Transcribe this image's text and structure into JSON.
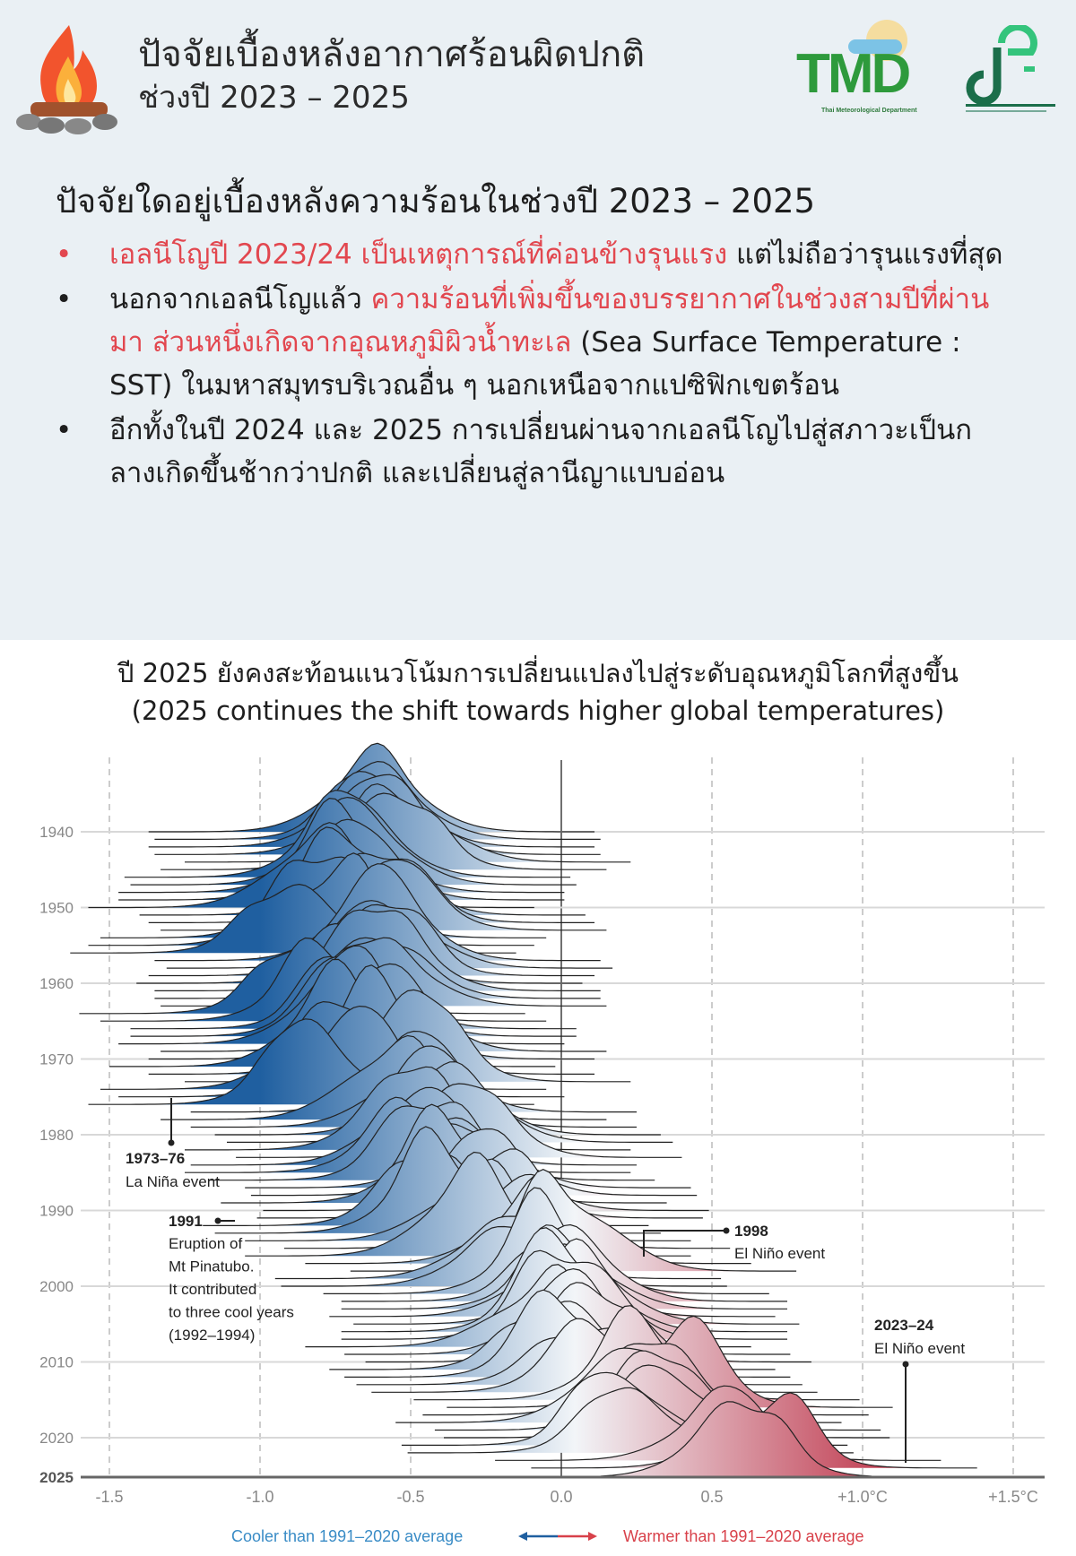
{
  "header": {
    "title": "ปัจจัยเบื้องหลังอากาศร้อนผิดปกติ",
    "subtitle": "ช่วงปี 2023 – 2025",
    "logo_tmd": "TMD",
    "logo_tmd_caption": "Thai Meteorological Department",
    "icons": [
      "campfire-icon",
      "tmd-logo",
      "ministry-logo"
    ]
  },
  "section": {
    "question": "ปัจจัยใดอยู่เบื้องหลังความร้อนในช่วงปี 2023 – 2025",
    "bullets": [
      {
        "red": "เอลนีโญปี 2023/24 เป็นเหตุการณ์ที่ค่อนข้างรุนแรง",
        "rest": " แต่ไม่ถือว่ารุนแรงที่สุด"
      },
      {
        "pre": "นอกจากเอลนีโญแล้ว ",
        "red": "ความร้อนที่เพิ่มขึ้นของบรรยากาศในช่วงสามปีที่ผ่านมา ส่วนหนึ่งเกิดจากอุณหภูมิผิวน้ำทะเล",
        "rest": " (Sea Surface Temperature : SST) ในมหาสมุทรบริเวณอื่น ๆ นอกเหนือจากแปซิฟิกเขตร้อน"
      },
      {
        "rest": "อีกทั้งในปี 2024 และ 2025 การเปลี่ยนผ่านจากเอลนีโญไปสู่สภาวะเป็นกลางเกิดขึ้นช้ากว่าปกติ และเปลี่ยนสู่ลานีญาแบบอ่อน"
      }
    ],
    "accent_color": "#e2474f"
  },
  "chart_data": {
    "type": "ridgeline",
    "title": "ปี 2025 ยังคงสะท้อนแนวโน้มการเปลี่ยนแปลงไปสู่ระดับอุณหภูมิโลกที่สูงขึ้น",
    "subtitle": "(2025 continues the shift towards higher global temperatures)",
    "x_ticks": [
      "-1.5",
      "-1.0",
      "-0.5",
      "0.0",
      "0.5",
      "+1.0°C",
      "+1.5°C"
    ],
    "x_tick_values": [
      -1.5,
      -1.0,
      -0.5,
      0.0,
      0.5,
      1.0,
      1.5
    ],
    "xlim": [
      -1.5,
      1.5
    ],
    "y_ticks": [
      "1940",
      "1950",
      "1960",
      "1970",
      "1980",
      "1990",
      "2000",
      "2010",
      "2020",
      "2025"
    ],
    "ylim": [
      1940,
      2025
    ],
    "years": [
      1940,
      1941,
      1942,
      1943,
      1944,
      1945,
      1946,
      1947,
      1948,
      1949,
      1950,
      1951,
      1952,
      1953,
      1954,
      1955,
      1956,
      1957,
      1958,
      1959,
      1960,
      1961,
      1962,
      1963,
      1964,
      1965,
      1966,
      1967,
      1968,
      1969,
      1970,
      1971,
      1972,
      1973,
      1974,
      1975,
      1976,
      1977,
      1978,
      1979,
      1980,
      1981,
      1982,
      1983,
      1984,
      1985,
      1986,
      1987,
      1988,
      1989,
      1990,
      1991,
      1992,
      1993,
      1994,
      1995,
      1996,
      1997,
      1998,
      1999,
      2000,
      2001,
      2002,
      2003,
      2004,
      2005,
      2006,
      2007,
      2008,
      2009,
      2010,
      2011,
      2012,
      2013,
      2014,
      2015,
      2016,
      2017,
      2018,
      2019,
      2020,
      2021,
      2022,
      2023,
      2024,
      2025
    ],
    "annual_mean_anomaly": [
      -0.62,
      -0.6,
      -0.62,
      -0.6,
      -0.5,
      -0.58,
      -0.7,
      -0.68,
      -0.72,
      -0.72,
      -0.82,
      -0.65,
      -0.62,
      -0.58,
      -0.78,
      -0.82,
      -0.88,
      -0.6,
      -0.56,
      -0.62,
      -0.66,
      -0.6,
      -0.6,
      -0.58,
      -0.85,
      -0.78,
      -0.68,
      -0.68,
      -0.72,
      -0.58,
      -0.62,
      -0.75,
      -0.62,
      -0.5,
      -0.78,
      -0.72,
      -0.82,
      -0.48,
      -0.58,
      -0.48,
      -0.4,
      -0.36,
      -0.5,
      -0.33,
      -0.48,
      -0.5,
      -0.42,
      -0.3,
      -0.28,
      -0.38,
      -0.24,
      -0.26,
      -0.44,
      -0.4,
      -0.3,
      -0.17,
      -0.3,
      -0.1,
      0.05,
      -0.2,
      -0.18,
      -0.04,
      0.02,
      0.02,
      -0.02,
      0.06,
      0.02,
      0.02,
      -0.1,
      0.03,
      0.1,
      -0.02,
      0.03,
      0.07,
      0.12,
      0.26,
      0.37,
      0.29,
      0.2,
      0.33,
      0.36,
      0.22,
      0.24,
      0.53,
      0.65,
      0.58
    ],
    "annotations": [
      {
        "title": "1973–76",
        "text": [
          "La Niña event"
        ]
      },
      {
        "title": "1991",
        "text": [
          "Eruption of",
          "Mt Pinatubo.",
          "It contributed",
          "to three cool years",
          "(1992–1994)"
        ]
      },
      {
        "title": "1998",
        "text": [
          "El Niño event"
        ]
      },
      {
        "title": "2023–24",
        "text": [
          "El Niño event"
        ]
      }
    ],
    "legend": {
      "cool": "Cooler than 1991–2020 average",
      "warm": "Warmer than 1991–2020 average"
    },
    "colors": {
      "cool": "#1f5fa0",
      "neutral": "#f2f5f8",
      "warm": "#b5122a",
      "cool_text": "#3a8cc6",
      "warm_text": "#d8414a"
    },
    "grid": true
  }
}
